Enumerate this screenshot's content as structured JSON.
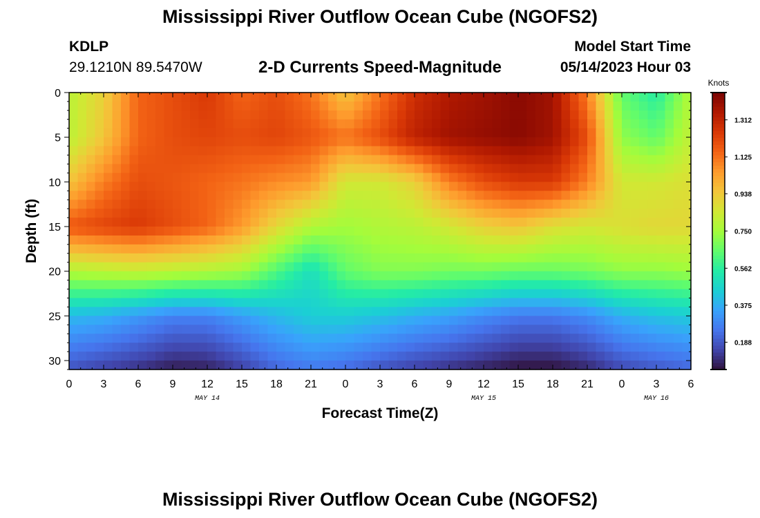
{
  "title": "Mississippi River Outflow Ocean Cube (NGOFS2)",
  "station": {
    "id": "KDLP",
    "coords": "29.1210N  89.5470W"
  },
  "subtitle": "2-D Currents Speed-Magnitude",
  "model_start": {
    "label": "Model Start Time",
    "value": "05/14/2023 Hour 03"
  },
  "next_panel_title": "Mississippi River Outflow Ocean Cube (NGOFS2)",
  "chart_data": {
    "type": "heatmap",
    "xlabel": "Forecast Time(Z)",
    "ylabel": "Depth (ft)",
    "x_range_hours": [
      0,
      54
    ],
    "y_range_ft": [
      0,
      31
    ],
    "x_ticks": [
      "0",
      "3",
      "6",
      "9",
      "12",
      "15",
      "18",
      "21",
      "0",
      "3",
      "6",
      "9",
      "12",
      "15",
      "18",
      "21",
      "0",
      "3",
      "6"
    ],
    "date_labels": [
      {
        "hour": 12,
        "text": "MAY 14"
      },
      {
        "hour": 36,
        "text": "MAY 15"
      },
      {
        "hour": 51,
        "text": "MAY 16"
      }
    ],
    "y_ticks": [
      "0",
      "5",
      "10",
      "15",
      "20",
      "25",
      "30"
    ],
    "y_tick_values": [
      0,
      5,
      10,
      15,
      20,
      25,
      30
    ],
    "colorbar": {
      "unit": "Knots",
      "min": 0.05,
      "max": 1.45,
      "ticks": [
        "0.188",
        "0.375",
        "0.562",
        "0.750",
        "0.938",
        "1.125",
        "1.312"
      ],
      "tick_values": [
        0.188,
        0.375,
        0.562,
        0.75,
        0.938,
        1.125,
        1.312
      ]
    },
    "colors": [
      "#30123b",
      "#4145ab",
      "#4675ed",
      "#39a2fc",
      "#1bcfd4",
      "#24eca6",
      "#61fc6c",
      "#a4fc3b",
      "#d1e834",
      "#f3c63a",
      "#fe9b2d",
      "#f36315",
      "#d93806",
      "#b11901",
      "#7a0403"
    ],
    "grid_hours": [
      0,
      3,
      6,
      9,
      12,
      15,
      18,
      21,
      24,
      27,
      30,
      33,
      36,
      39,
      42,
      45,
      48,
      51,
      54
    ],
    "grid_depths_ft": [
      0,
      5,
      10,
      15,
      20,
      25,
      31
    ],
    "values": [
      [
        0.8,
        0.92,
        1.15,
        1.2,
        1.25,
        1.15,
        1.2,
        1.12,
        0.95,
        1.12,
        1.28,
        1.35,
        1.38,
        1.42,
        1.38,
        1.1,
        0.65,
        0.55,
        0.78
      ],
      [
        0.8,
        0.95,
        1.15,
        1.2,
        1.22,
        1.2,
        1.22,
        1.18,
        1.12,
        1.2,
        1.32,
        1.38,
        1.4,
        1.42,
        1.38,
        1.2,
        0.72,
        0.65,
        0.82
      ],
      [
        0.95,
        1.1,
        1.2,
        1.18,
        1.15,
        1.12,
        1.08,
        1.05,
        0.85,
        0.85,
        0.92,
        1.1,
        1.2,
        1.25,
        1.25,
        1.1,
        0.85,
        0.85,
        0.88
      ],
      [
        1.18,
        1.22,
        1.25,
        1.2,
        1.15,
        1.05,
        0.9,
        0.78,
        0.75,
        0.78,
        0.8,
        0.85,
        0.92,
        0.95,
        0.88,
        0.85,
        0.88,
        0.9,
        0.9
      ],
      [
        0.78,
        0.8,
        0.82,
        0.8,
        0.78,
        0.75,
        0.62,
        0.5,
        0.65,
        0.7,
        0.7,
        0.68,
        0.68,
        0.66,
        0.66,
        0.68,
        0.72,
        0.72,
        0.74
      ],
      [
        0.4,
        0.38,
        0.33,
        0.28,
        0.28,
        0.34,
        0.4,
        0.45,
        0.45,
        0.42,
        0.38,
        0.35,
        0.3,
        0.26,
        0.26,
        0.3,
        0.38,
        0.42,
        0.44
      ],
      [
        0.18,
        0.14,
        0.11,
        0.07,
        0.08,
        0.14,
        0.22,
        0.26,
        0.23,
        0.18,
        0.14,
        0.11,
        0.08,
        0.05,
        0.05,
        0.09,
        0.16,
        0.19,
        0.22
      ]
    ]
  }
}
